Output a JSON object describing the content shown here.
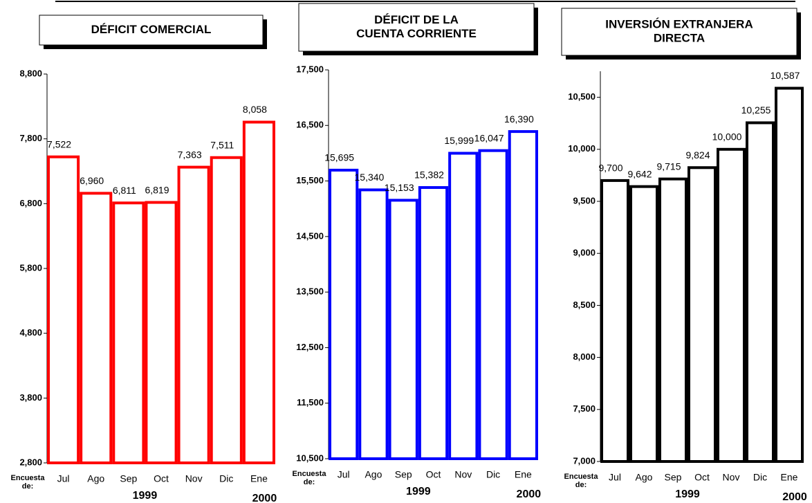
{
  "chart_data": [
    {
      "type": "bar",
      "title": [
        "DÉFICIT COMERCIAL"
      ],
      "color": "#ff0000",
      "categories": [
        "Jul",
        "Ago",
        "Sep",
        "Oct",
        "Nov",
        "Dic",
        "Ene"
      ],
      "values": [
        7522,
        6960,
        6811,
        6819,
        7363,
        7511,
        8058
      ],
      "value_labels": [
        "7,522",
        "6,960",
        "6,811",
        "6,819",
        "7,363",
        "7,511",
        "8,058"
      ],
      "ylim": [
        2800,
        8800
      ],
      "yticks": [
        {
          "value": 2800,
          "label": "2,800"
        },
        {
          "value": 3800,
          "label": "3,800"
        },
        {
          "value": 4800,
          "label": "4,800"
        },
        {
          "value": 5800,
          "label": "5,800"
        },
        {
          "value": 6800,
          "label": "6,800"
        },
        {
          "value": 7800,
          "label": "7,800"
        },
        {
          "value": 8800,
          "label": "8,800"
        }
      ],
      "x_label": [
        "Encuesta",
        "de:"
      ],
      "periods": [
        "1999",
        "2000"
      ]
    },
    {
      "type": "bar",
      "title": [
        "DÉFICIT DE LA",
        "CUENTA CORRIENTE"
      ],
      "color": "#0000ff",
      "categories": [
        "Jul",
        "Ago",
        "Sep",
        "Oct",
        "Nov",
        "Dic",
        "Ene"
      ],
      "values": [
        15695,
        15340,
        15153,
        15382,
        15999,
        16047,
        16390
      ],
      "value_labels": [
        "15,695",
        "15,340",
        "15,153",
        "15,382",
        "15,999",
        "16,047",
        "16,390"
      ],
      "ylim": [
        10500,
        17500
      ],
      "yticks": [
        {
          "value": 10500,
          "label": "10,500"
        },
        {
          "value": 11500,
          "label": "11,500"
        },
        {
          "value": 12500,
          "label": "12,500"
        },
        {
          "value": 13500,
          "label": "13,500"
        },
        {
          "value": 14500,
          "label": "14,500"
        },
        {
          "value": 15500,
          "label": "15,500"
        },
        {
          "value": 16500,
          "label": "16,500"
        },
        {
          "value": 17500,
          "label": "17,500"
        }
      ],
      "x_label": [
        "Encuesta",
        "de:"
      ],
      "periods": [
        "1999",
        "2000"
      ]
    },
    {
      "type": "bar",
      "title": [
        "INVERSIÓN EXTRANJERA",
        "DIRECTA"
      ],
      "color": "#000000",
      "categories": [
        "Jul",
        "Ago",
        "Sep",
        "Oct",
        "Nov",
        "Dic",
        "Ene"
      ],
      "values": [
        9700,
        9642,
        9715,
        9824,
        10000,
        10255,
        10587
      ],
      "value_labels": [
        "9,700",
        "9,642",
        "9,715",
        "9,824",
        "10,000",
        "10,255",
        "10,587"
      ],
      "ylim": [
        7000,
        10750
      ],
      "yticks": [
        {
          "value": 7000,
          "label": "7,000"
        },
        {
          "value": 7500,
          "label": "7,500"
        },
        {
          "value": 8000,
          "label": "8,000"
        },
        {
          "value": 8500,
          "label": "8,500"
        },
        {
          "value": 9000,
          "label": "9,000"
        },
        {
          "value": 9500,
          "label": "9,500"
        },
        {
          "value": 10000,
          "label": "10,000"
        },
        {
          "value": 10500,
          "label": "10,500"
        }
      ],
      "x_label": [
        "Encuesta",
        "de:"
      ],
      "periods": [
        "1999",
        "2000"
      ]
    }
  ]
}
